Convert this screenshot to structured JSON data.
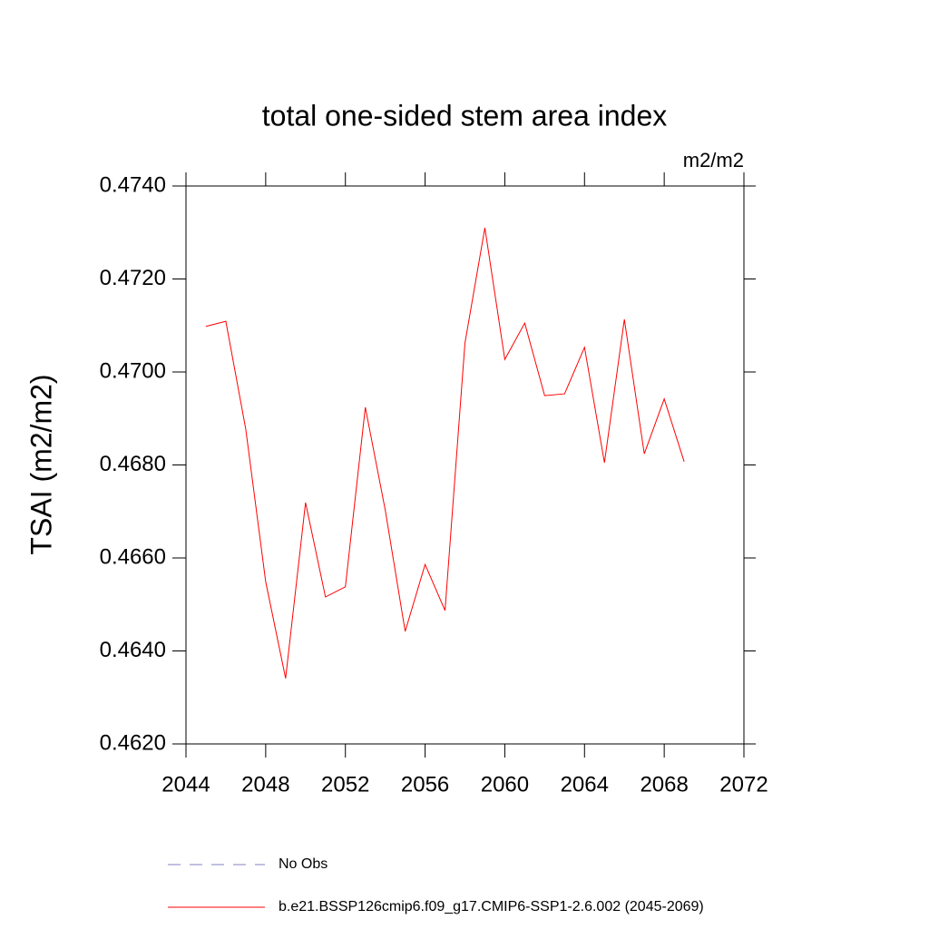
{
  "chart_data": {
    "type": "line",
    "title": "total one-sided stem area index",
    "units": "m2/m2",
    "ylabel": "TSAI  (m2/m2)",
    "x": [
      2045,
      2046,
      2047,
      2048,
      2049,
      2050,
      2051,
      2052,
      2053,
      2054,
      2055,
      2056,
      2057,
      2058,
      2059,
      2060,
      2061,
      2062,
      2063,
      2064,
      2065,
      2066,
      2067,
      2068,
      2069
    ],
    "series": [
      {
        "name": "No Obs",
        "color": "#8080c0",
        "dashed": true,
        "values": [
          null,
          null,
          null,
          null,
          null,
          null,
          null,
          null,
          null,
          null,
          null,
          null,
          null,
          null,
          null,
          null,
          null,
          null,
          null,
          null,
          null,
          null,
          null,
          null,
          null
        ]
      },
      {
        "name": "b.e21.BSSP126cmip6.f09_g17.CMIP6-SSP1-2.6.002 (2045-2069)",
        "color": "#ff0000",
        "dashed": false,
        "values": [
          0.47098,
          0.47109,
          0.46877,
          0.46549,
          0.46341,
          0.46719,
          0.46516,
          0.46538,
          0.46924,
          0.46703,
          0.46442,
          0.46586,
          0.46487,
          0.47062,
          0.4731,
          0.47027,
          0.47105,
          0.46949,
          0.46953,
          0.47053,
          0.46805,
          0.47113,
          0.46824,
          0.46942,
          0.46807
        ]
      }
    ],
    "xlim": [
      2044,
      2072
    ],
    "xticks": [
      2044,
      2048,
      2052,
      2056,
      2060,
      2064,
      2068,
      2072
    ],
    "ylim": [
      0.462,
      0.474
    ],
    "yticks": [
      {
        "value": 0.462,
        "label": "0.4620"
      },
      {
        "value": 0.464,
        "label": "0.4640"
      },
      {
        "value": 0.466,
        "label": "0.4660"
      },
      {
        "value": 0.468,
        "label": "0.4680"
      },
      {
        "value": 0.47,
        "label": "0.4700"
      },
      {
        "value": 0.472,
        "label": "0.4720"
      },
      {
        "value": 0.474,
        "label": "0.4740"
      }
    ]
  }
}
